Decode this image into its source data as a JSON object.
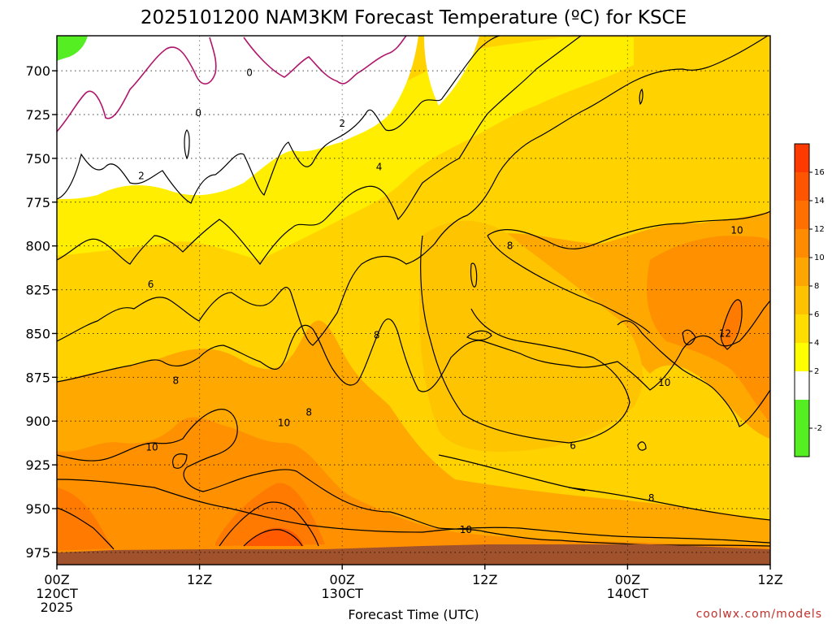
{
  "chart_data": {
    "type": "contour",
    "title": "2025101200 NAM3KM Forecast Temperature (ºC) for KSCE",
    "xlabel": "Forecast Time (UTC)",
    "credit": "coolwx.com/models",
    "x_ticks": [
      {
        "hour": 0,
        "lines": [
          "00Z",
          "120CT",
          "2025"
        ]
      },
      {
        "hour": 12,
        "lines": [
          "12Z"
        ]
      },
      {
        "hour": 24,
        "lines": [
          "00Z",
          "130CT"
        ]
      },
      {
        "hour": 36,
        "lines": [
          "12Z"
        ]
      },
      {
        "hour": 48,
        "lines": [
          "00Z",
          "140CT"
        ]
      },
      {
        "hour": 60,
        "lines": [
          "12Z"
        ]
      }
    ],
    "xlim": [
      0,
      60
    ],
    "y_ticks": [
      700,
      725,
      750,
      775,
      800,
      825,
      850,
      875,
      900,
      925,
      950,
      975
    ],
    "ylim": [
      680,
      982
    ],
    "y_unit": "hPa",
    "grid": true,
    "colorbar": {
      "ticks": [
        -2,
        2,
        4,
        6,
        8,
        10,
        12,
        14,
        16
      ],
      "bands": [
        {
          "from": -4,
          "to": 0,
          "color": "#55ee22"
        },
        {
          "from": 0,
          "to": 2,
          "color": "#ffffff"
        },
        {
          "from": 2,
          "to": 4,
          "color": "#ffff00"
        },
        {
          "from": 4,
          "to": 6,
          "color": "#ffdd00"
        },
        {
          "from": 6,
          "to": 8,
          "color": "#ffc200"
        },
        {
          "from": 8,
          "to": 10,
          "color": "#ffa500"
        },
        {
          "from": 10,
          "to": 12,
          "color": "#ff8c00"
        },
        {
          "from": 12,
          "to": 14,
          "color": "#ff7000"
        },
        {
          "from": 14,
          "to": 16,
          "color": "#ff5500"
        },
        {
          "from": 16,
          "to": 18,
          "color": "#ff3a00"
        }
      ]
    },
    "contour_labels": [
      {
        "value": "0",
        "hour": 16.2,
        "p": 701
      },
      {
        "value": "0",
        "hour": 11.9,
        "p": 724
      },
      {
        "value": "2",
        "hour": 7.1,
        "p": 760
      },
      {
        "value": "2",
        "hour": 24.0,
        "p": 730
      },
      {
        "value": "4",
        "hour": 27.1,
        "p": 755
      },
      {
        "value": "6",
        "hour": 7.9,
        "p": 822
      },
      {
        "value": "8",
        "hour": 38.1,
        "p": 800
      },
      {
        "value": "8",
        "hour": 26.9,
        "p": 851
      },
      {
        "value": "8",
        "hour": 10.0,
        "p": 877
      },
      {
        "value": "8",
        "hour": 21.2,
        "p": 895
      },
      {
        "value": "8",
        "hour": 50.0,
        "p": 944
      },
      {
        "value": "10",
        "hour": 57.2,
        "p": 791
      },
      {
        "value": "10",
        "hour": 51.1,
        "p": 878
      },
      {
        "value": "10",
        "hour": 19.1,
        "p": 901
      },
      {
        "value": "10",
        "hour": 8.0,
        "p": 915
      },
      {
        "value": "10",
        "hour": 34.4,
        "p": 962
      },
      {
        "value": "12",
        "hour": 56.2,
        "p": 850
      },
      {
        "value": "6",
        "hour": 43.4,
        "p": 914
      }
    ],
    "ground": {
      "color": "#a0522d",
      "p_top": 974
    }
  }
}
